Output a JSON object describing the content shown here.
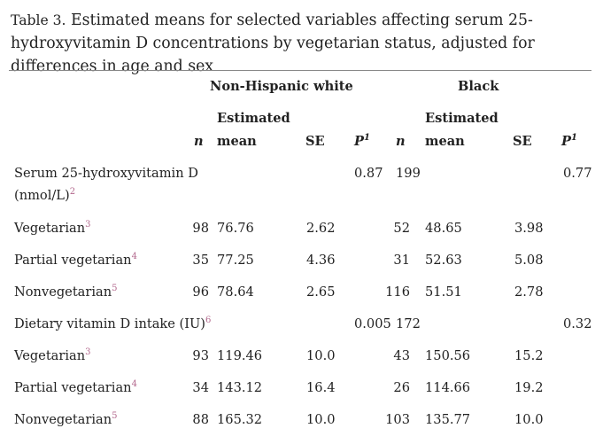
{
  "caption": {
    "table_label": "Table 3.",
    "text": " Estimated means for selected variables affecting serum 25-hydroxyvitamin D concentrations by vegetarian status, adjusted for differences in age and sex"
  },
  "groups": {
    "white": "Non-Hispanic white",
    "black": "Black"
  },
  "columns": {
    "n": "n",
    "estimated": "Estimated",
    "mean": "mean",
    "se": "SE",
    "p": "P",
    "p_sup": "1"
  },
  "rows": [
    {
      "label": "Serum 25-hydroxyvitamin D",
      "label2": "(nmol/L)",
      "sup": "2",
      "w_n": "",
      "w_mean": "",
      "w_se": "",
      "w_p": "0.87",
      "b_n": "199",
      "b_mean": "",
      "b_se": "",
      "b_p": "0.77"
    },
    {
      "label": "Vegetarian",
      "sup": "3",
      "w_n": "98",
      "w_mean": "76.76",
      "w_se": "2.62",
      "w_p": "",
      "b_n": "52",
      "b_mean": "48.65",
      "b_se": "3.98",
      "b_p": ""
    },
    {
      "label": "Partial vegetarian",
      "sup": "4",
      "w_n": "35",
      "w_mean": "77.25",
      "w_se": "4.36",
      "w_p": "",
      "b_n": "31",
      "b_mean": "52.63",
      "b_se": "5.08",
      "b_p": ""
    },
    {
      "label": "Nonvegetarian",
      "sup": "5",
      "w_n": "96",
      "w_mean": "78.64",
      "w_se": "2.65",
      "w_p": "",
      "b_n": "116",
      "b_mean": "51.51",
      "b_se": "2.78",
      "b_p": ""
    },
    {
      "label": "Dietary vitamin D intake (IU)",
      "sup": "6",
      "w_n": "",
      "w_mean": "",
      "w_se": "",
      "w_p": "0.005",
      "b_n": "172",
      "b_mean": "",
      "b_se": "",
      "b_p": "0.32"
    },
    {
      "label": "Vegetarian",
      "sup": "3",
      "w_n": "93",
      "w_mean": "119.46",
      "w_se": "10.0",
      "w_p": "",
      "b_n": "43",
      "b_mean": "150.56",
      "b_se": "15.2",
      "b_p": ""
    },
    {
      "label": "Partial vegetarian",
      "sup": "4",
      "w_n": "34",
      "w_mean": "143.12",
      "w_se": "16.4",
      "w_p": "",
      "b_n": "26",
      "b_mean": "114.66",
      "b_se": "19.2",
      "b_p": ""
    },
    {
      "label": "Nonvegetarian",
      "sup": "5",
      "w_n": "88",
      "w_mean": "165.32",
      "w_se": "10.0",
      "w_p": "",
      "b_n": "103",
      "b_mean": "135.77",
      "b_se": "10.0",
      "b_p": ""
    }
  ]
}
